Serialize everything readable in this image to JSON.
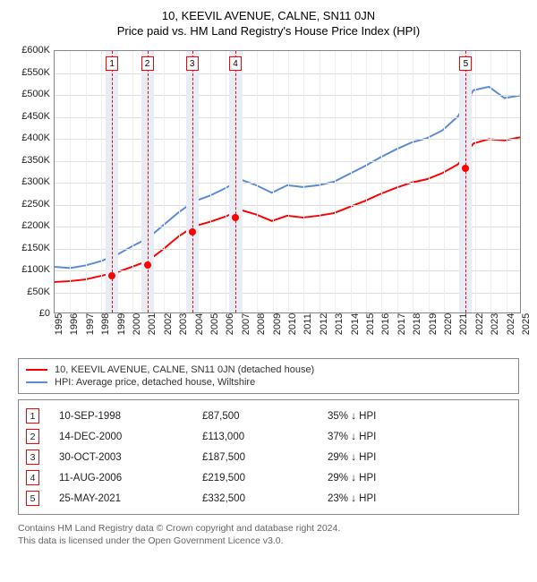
{
  "title_line1": "10, KEEVIL AVENUE, CALNE, SN11 0JN",
  "title_line2": "Price paid vs. HM Land Registry's House Price Index (HPI)",
  "chart": {
    "type": "line",
    "y_axis": {
      "min": 0,
      "max": 600000,
      "step": 50000,
      "prefix": "£",
      "short_suffix": "K"
    },
    "x_axis": {
      "min": 1995,
      "max": 2025,
      "step": 1
    },
    "grid_color": "#dddddd",
    "grid_color_v": "#eeeeee",
    "background_color": "#ffffff",
    "band_color": "#e8edf5",
    "dash_color": "#ff0000",
    "series": [
      {
        "name": "property",
        "label": "10, KEEVIL AVENUE, CALNE, SN11 0JN (detached house)",
        "color": "#ff0000",
        "line_width": 2,
        "points": [
          [
            1995,
            70000
          ],
          [
            1996,
            72000
          ],
          [
            1997,
            76000
          ],
          [
            1998,
            84000
          ],
          [
            1999,
            92000
          ],
          [
            2000,
            105000
          ],
          [
            2001,
            118000
          ],
          [
            2002,
            145000
          ],
          [
            2003,
            175000
          ],
          [
            2004,
            198000
          ],
          [
            2005,
            208000
          ],
          [
            2006,
            220000
          ],
          [
            2007,
            235000
          ],
          [
            2008,
            225000
          ],
          [
            2009,
            210000
          ],
          [
            2010,
            222000
          ],
          [
            2011,
            218000
          ],
          [
            2012,
            222000
          ],
          [
            2013,
            228000
          ],
          [
            2014,
            242000
          ],
          [
            2015,
            256000
          ],
          [
            2016,
            272000
          ],
          [
            2017,
            286000
          ],
          [
            2018,
            298000
          ],
          [
            2019,
            306000
          ],
          [
            2020,
            320000
          ],
          [
            2021,
            340000
          ],
          [
            2022,
            388000
          ],
          [
            2023,
            398000
          ],
          [
            2024,
            395000
          ],
          [
            2025,
            402000
          ]
        ]
      },
      {
        "name": "hpi",
        "label": "HPI: Average price, detached house, Wiltshire",
        "color": "#5b8bd4",
        "line_width": 2,
        "points": [
          [
            1995,
            105000
          ],
          [
            1996,
            102000
          ],
          [
            1997,
            108000
          ],
          [
            1998,
            118000
          ],
          [
            1999,
            132000
          ],
          [
            2000,
            152000
          ],
          [
            2001,
            170000
          ],
          [
            2002,
            200000
          ],
          [
            2003,
            230000
          ],
          [
            2004,
            255000
          ],
          [
            2005,
            268000
          ],
          [
            2006,
            285000
          ],
          [
            2007,
            305000
          ],
          [
            2008,
            292000
          ],
          [
            2009,
            275000
          ],
          [
            2010,
            292000
          ],
          [
            2011,
            288000
          ],
          [
            2012,
            292000
          ],
          [
            2013,
            300000
          ],
          [
            2014,
            318000
          ],
          [
            2015,
            336000
          ],
          [
            2016,
            356000
          ],
          [
            2017,
            374000
          ],
          [
            2018,
            390000
          ],
          [
            2019,
            400000
          ],
          [
            2020,
            418000
          ],
          [
            2021,
            450000
          ],
          [
            2022,
            510000
          ],
          [
            2023,
            518000
          ],
          [
            2024,
            492000
          ],
          [
            2025,
            498000
          ]
        ]
      }
    ],
    "sale_markers": [
      {
        "n": "1",
        "year": 1998.69,
        "price": 87500
      },
      {
        "n": "2",
        "year": 2000.95,
        "price": 113000
      },
      {
        "n": "3",
        "year": 2003.83,
        "price": 187500
      },
      {
        "n": "4",
        "year": 2006.61,
        "price": 219500
      },
      {
        "n": "5",
        "year": 2021.4,
        "price": 332500
      }
    ]
  },
  "legend": {
    "items": [
      {
        "color": "#ff0000",
        "text": "10, KEEVIL AVENUE, CALNE, SN11 0JN (detached house)"
      },
      {
        "color": "#5b8bd4",
        "text": "HPI: Average price, detached house, Wiltshire"
      }
    ]
  },
  "sales_table": {
    "rows": [
      {
        "n": "1",
        "date": "10-SEP-1998",
        "price": "£87,500",
        "diff": "35% ↓ HPI"
      },
      {
        "n": "2",
        "date": "14-DEC-2000",
        "price": "£113,000",
        "diff": "37% ↓ HPI"
      },
      {
        "n": "3",
        "date": "30-OCT-2003",
        "price": "£187,500",
        "diff": "29% ↓ HPI"
      },
      {
        "n": "4",
        "date": "11-AUG-2006",
        "price": "£219,500",
        "diff": "29% ↓ HPI"
      },
      {
        "n": "5",
        "date": "25-MAY-2021",
        "price": "£332,500",
        "diff": "23% ↓ HPI"
      }
    ]
  },
  "footnote_line1": "Contains HM Land Registry data © Crown copyright and database right 2024.",
  "footnote_line2": "This data is licensed under the Open Government Licence v3.0."
}
